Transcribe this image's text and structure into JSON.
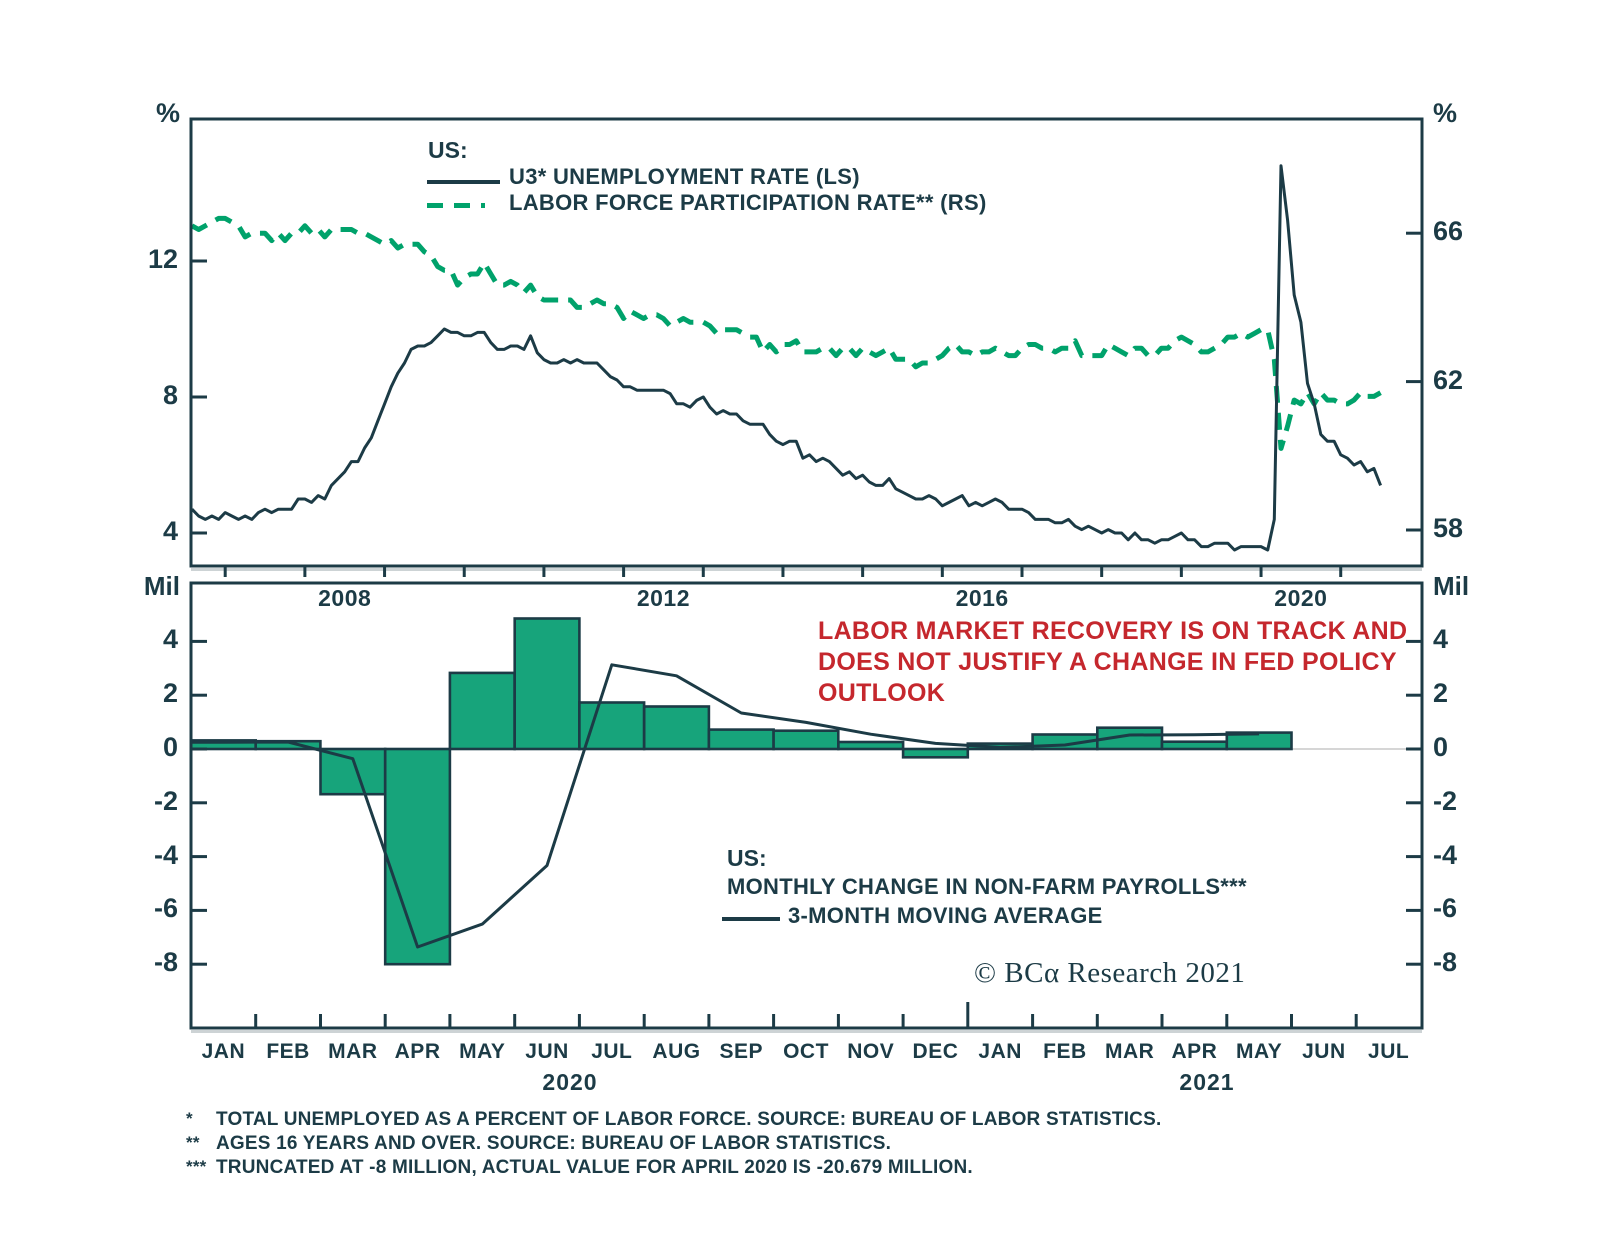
{
  "colors": {
    "dark": "#1C3B46",
    "green": "#00A26B",
    "bar_fill": "#17A47B",
    "red": "#C5272D",
    "zero_line": "#C9C9C9",
    "shadow": "#CDD3D5",
    "background": "#FFFFFF"
  },
  "texts": {
    "top_unit_left": "%",
    "top_unit_right": "%",
    "bottom_unit_left": "Mil",
    "bottom_unit_right": "Mil",
    "top_legend": {
      "title": "US:",
      "series1": "U3* UNEMPLOYMENT RATE (LS)",
      "series2": "LABOR FORCE PARTICIPATION RATE** (RS)"
    },
    "bottom_legend": {
      "title": "US:",
      "series1": "MONTHLY CHANGE IN NON-FARM PAYROLLS***",
      "series2": "3-MONTH MOVING AVERAGE"
    },
    "annotation_lines": [
      "LABOR MARKET RECOVERY IS ON TRACK AND",
      "DOES NOT JUSTIFY A CHANGE IN FED POLICY",
      "OUTLOOK"
    ],
    "bottom_year_left": "2020",
    "bottom_year_right": "2021",
    "footnotes": [
      {
        "marker": "*",
        "text": "TOTAL UNEMPLOYED AS A PERCENT OF LABOR FORCE. SOURCE: BUREAU OF LABOR STATISTICS."
      },
      {
        "marker": "**",
        "text": "AGES 16 YEARS AND OVER. SOURCE: BUREAU OF LABOR STATISTICS."
      },
      {
        "marker": "***",
        "text": "TRUNCATED AT -8 MILLION, ACTUAL VALUE FOR APRIL 2020 IS -20.679 MILLION."
      }
    ],
    "copyright": "© BCα Research 2021"
  },
  "chart_data": [
    {
      "id": "top_panel",
      "type": "line",
      "title": "US: U3 Unemployment Rate (LS) vs Labor Force Participation Rate (RS)",
      "x_start": "2006-08",
      "x_end": "2021-07",
      "x_step": "month",
      "ylim_left": [
        3.0,
        16.2
      ],
      "ylim_right": [
        57.3,
        69.1
      ],
      "left_ticks": [
        12,
        8,
        4
      ],
      "right_ticks": [
        66,
        62,
        58
      ],
      "x_year_tick_years": [
        2007,
        2008,
        2009,
        2010,
        2011,
        2012,
        2013,
        2014,
        2015,
        2016,
        2017,
        2018,
        2019,
        2020,
        2021
      ],
      "x_year_labels": [
        {
          "label": "2008",
          "year_mid": 2008
        },
        {
          "label": "2012",
          "year_mid": 2012
        },
        {
          "label": "2016",
          "year_mid": 2016
        },
        {
          "label": "2020",
          "year_mid": 2020
        }
      ],
      "grid": false,
      "legend_position": "top-inside",
      "series": [
        {
          "name": "U3* UNEMPLOYMENT RATE (LS)",
          "axis": "left",
          "style": "solid",
          "values": [
            4.7,
            4.5,
            4.4,
            4.5,
            4.4,
            4.6,
            4.5,
            4.4,
            4.5,
            4.4,
            4.6,
            4.7,
            4.6,
            4.7,
            4.7,
            4.7,
            5.0,
            5.0,
            4.9,
            5.1,
            5.0,
            5.4,
            5.6,
            5.8,
            6.1,
            6.1,
            6.5,
            6.8,
            7.3,
            7.8,
            8.3,
            8.7,
            9.0,
            9.4,
            9.5,
            9.5,
            9.6,
            9.8,
            10.0,
            9.9,
            9.9,
            9.8,
            9.8,
            9.9,
            9.9,
            9.6,
            9.4,
            9.4,
            9.5,
            9.5,
            9.4,
            9.8,
            9.3,
            9.1,
            9.0,
            9.0,
            9.1,
            9.0,
            9.1,
            9.0,
            9.0,
            9.0,
            8.8,
            8.6,
            8.5,
            8.3,
            8.3,
            8.2,
            8.2,
            8.2,
            8.2,
            8.2,
            8.1,
            7.8,
            7.8,
            7.7,
            7.9,
            8.0,
            7.7,
            7.5,
            7.6,
            7.5,
            7.5,
            7.3,
            7.2,
            7.2,
            7.2,
            6.9,
            6.7,
            6.6,
            6.7,
            6.7,
            6.2,
            6.3,
            6.1,
            6.2,
            6.1,
            5.9,
            5.7,
            5.8,
            5.6,
            5.7,
            5.5,
            5.4,
            5.4,
            5.6,
            5.3,
            5.2,
            5.1,
            5.0,
            5.0,
            5.1,
            5.0,
            4.8,
            4.9,
            5.0,
            5.1,
            4.8,
            4.9,
            4.8,
            4.9,
            5.0,
            4.9,
            4.7,
            4.7,
            4.7,
            4.6,
            4.4,
            4.4,
            4.4,
            4.3,
            4.3,
            4.4,
            4.2,
            4.1,
            4.2,
            4.1,
            4.0,
            4.1,
            4.0,
            4.0,
            3.8,
            4.0,
            3.8,
            3.8,
            3.7,
            3.8,
            3.8,
            3.9,
            4.0,
            3.8,
            3.8,
            3.6,
            3.6,
            3.7,
            3.7,
            3.7,
            3.5,
            3.6,
            3.6,
            3.6,
            3.6,
            3.5,
            4.4,
            14.8,
            13.2,
            11.0,
            10.2,
            8.4,
            7.8,
            6.9,
            6.7,
            6.7,
            6.3,
            6.2,
            6.0,
            6.1,
            5.8,
            5.9,
            5.4
          ]
        },
        {
          "name": "LABOR FORCE PARTICIPATION RATE** (RS)",
          "axis": "right",
          "style": "dashed",
          "values": [
            66.2,
            66.1,
            66.2,
            66.3,
            66.4,
            66.4,
            66.3,
            66.2,
            65.9,
            66.0,
            66.0,
            66.0,
            65.8,
            66.0,
            65.8,
            66.0,
            66.0,
            66.2,
            66.0,
            66.1,
            65.9,
            66.1,
            66.1,
            66.1,
            66.1,
            66.0,
            66.0,
            65.9,
            65.8,
            65.7,
            65.8,
            65.6,
            65.7,
            65.7,
            65.7,
            65.5,
            65.4,
            65.1,
            65.0,
            65.0,
            64.6,
            64.8,
            64.9,
            64.9,
            65.2,
            64.9,
            64.6,
            64.6,
            64.7,
            64.6,
            64.4,
            64.6,
            64.3,
            64.2,
            64.2,
            64.2,
            64.2,
            64.2,
            64.0,
            64.0,
            64.1,
            64.2,
            64.1,
            64.1,
            64.0,
            63.7,
            63.9,
            63.8,
            63.7,
            63.8,
            63.8,
            63.7,
            63.5,
            63.6,
            63.7,
            63.6,
            63.6,
            63.6,
            63.5,
            63.3,
            63.4,
            63.4,
            63.4,
            63.3,
            63.2,
            63.2,
            62.8,
            63.0,
            62.8,
            63.0,
            63.0,
            63.1,
            62.8,
            62.8,
            62.8,
            62.9,
            62.9,
            62.7,
            62.9,
            62.9,
            62.7,
            62.9,
            62.8,
            62.7,
            62.8,
            62.9,
            62.6,
            62.6,
            62.6,
            62.4,
            62.5,
            62.5,
            62.6,
            62.7,
            62.9,
            63.0,
            62.8,
            62.8,
            62.7,
            62.8,
            62.8,
            62.9,
            62.8,
            62.7,
            62.7,
            62.9,
            63.0,
            63.0,
            62.9,
            62.9,
            62.8,
            62.9,
            62.9,
            63.1,
            62.7,
            62.7,
            62.7,
            62.7,
            63.0,
            62.9,
            62.8,
            62.7,
            62.9,
            62.9,
            62.7,
            62.7,
            62.9,
            62.9,
            63.1,
            63.2,
            63.1,
            63.0,
            62.8,
            62.8,
            62.9,
            63.0,
            63.2,
            63.2,
            63.3,
            63.2,
            63.3,
            63.4,
            63.4,
            62.6,
            60.2,
            60.8,
            61.5,
            61.4,
            61.7,
            61.4,
            61.7,
            61.5,
            61.5,
            61.4,
            61.4,
            61.5,
            61.7,
            61.6,
            61.6,
            61.7
          ]
        }
      ]
    },
    {
      "id": "bottom_panel",
      "type": "bar",
      "title": "US: Monthly Change in Non-Farm Payrolls (Mil)",
      "categories": [
        "JAN",
        "FEB",
        "MAR",
        "APR",
        "MAY",
        "JUN",
        "JUL",
        "AUG",
        "SEP",
        "OCT",
        "NOV",
        "DEC",
        "JAN",
        "FEB",
        "MAR",
        "APR",
        "MAY",
        "JUN",
        "JUL"
      ],
      "category_years": {
        "2020": "JAN-DEC",
        "2021": "JAN-JUL"
      },
      "ylim": [
        -10.4,
        6.2
      ],
      "ticks": [
        4,
        2,
        0,
        -2,
        -4,
        -6,
        -8
      ],
      "year_divider_after_index": 11,
      "series": [
        {
          "name": "MONTHLY CHANGE IN NON-FARM PAYROLLS***",
          "type": "bar",
          "values": [
            0.32,
            0.29,
            -1.68,
            -8.0,
            2.83,
            4.85,
            1.73,
            1.58,
            0.72,
            0.68,
            0.26,
            -0.31,
            0.2,
            0.54,
            0.79,
            0.27,
            0.61,
            null,
            null
          ]
        },
        {
          "name": "3-MONTH MOVING AVERAGE",
          "type": "line",
          "values": [
            0.25,
            0.26,
            -0.36,
            -7.36,
            -6.51,
            -4.33,
            3.13,
            2.72,
            1.34,
            0.99,
            0.55,
            0.21,
            0.06,
            0.15,
            0.52,
            0.53,
            0.56,
            null,
            null
          ]
        }
      ]
    }
  ]
}
